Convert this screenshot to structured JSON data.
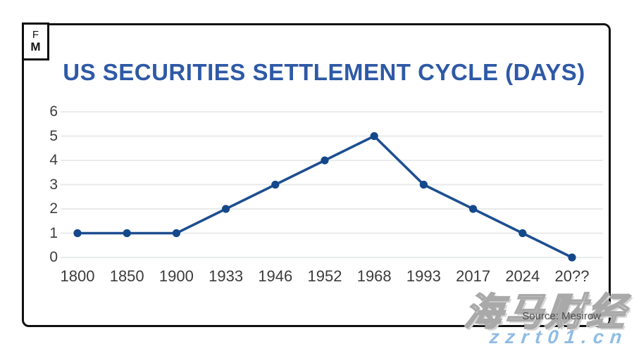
{
  "page": {
    "background": "#ffffff",
    "border_color": "#101010"
  },
  "logo": {
    "line1": "F",
    "line2": "M"
  },
  "header": {
    "title": "US SECURITIES SETTLEMENT CYCLE (DAYS)",
    "title_color": "#2e59a6"
  },
  "chart_data": {
    "type": "line",
    "title": "US SECURITIES SETTLEMENT CYCLE (DAYS)",
    "categories": [
      "1800",
      "1850",
      "1900",
      "1933",
      "1946",
      "1952",
      "1968",
      "1993",
      "2017",
      "2024",
      "20??"
    ],
    "values": [
      1,
      1,
      1,
      2,
      3,
      4,
      5,
      3,
      2,
      1,
      0
    ],
    "xlabel": "",
    "ylabel": "",
    "y_ticks": [
      0,
      1,
      2,
      3,
      4,
      5,
      6
    ],
    "ylim": [
      0,
      6
    ],
    "grid": true,
    "legend": "none",
    "line_color": "#1d4e90",
    "marker_color": "#15488a",
    "gridline_color": "#e8ebeb",
    "tick_color": "#3d3d3d"
  },
  "footer": {
    "source": "Source: Mesirow"
  },
  "watermarks": {
    "brand": "海马财经",
    "site": "zzrt01.cn",
    "site_color": "#8fbce5"
  }
}
